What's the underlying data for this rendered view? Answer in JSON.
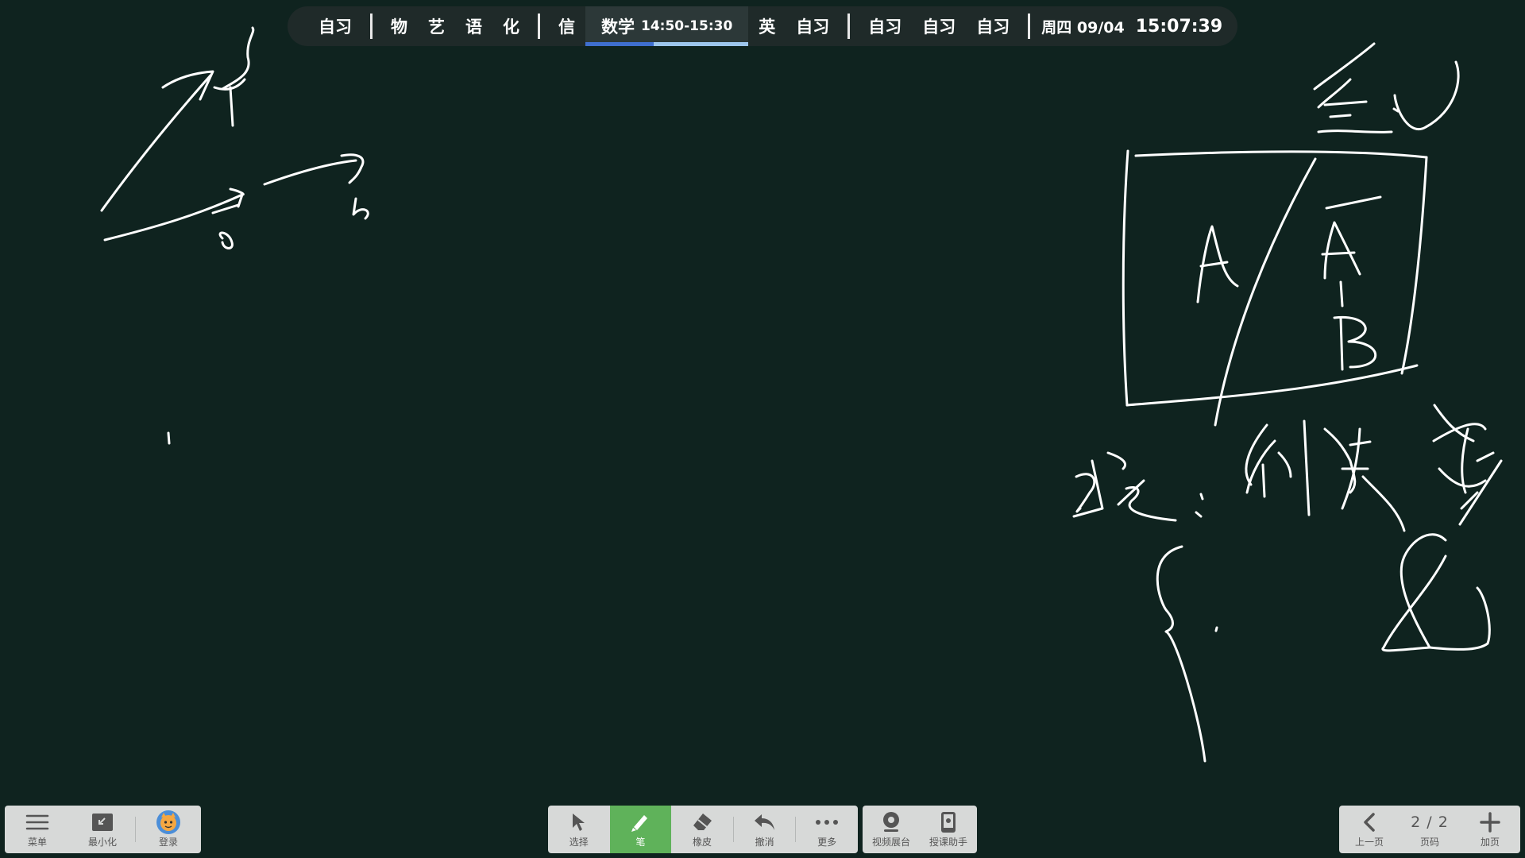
{
  "schedule": {
    "items_a": [
      "自习"
    ],
    "items_b": [
      "物",
      "艺",
      "语",
      "化"
    ],
    "items_c": [
      "信"
    ],
    "current": {
      "subject": "数学",
      "time": "14:50-15:30",
      "progress": 0.42
    },
    "items_d": [
      "英",
      "自习"
    ],
    "items_e": [
      "自习",
      "自习",
      "自习"
    ],
    "date": "周四 09/04",
    "clock": "15:07:39"
  },
  "toolbar_left": {
    "menu": "菜单",
    "minimize": "最小化",
    "login": "登录"
  },
  "toolbar_center": {
    "select": "选择",
    "pen": "笔",
    "eraser": "橡皮",
    "undo": "撤消",
    "more": "更多"
  },
  "toolbar_camera": {
    "video_booth": "视频展台",
    "teaching_assistant": "授课助手"
  },
  "toolbar_right": {
    "prev_page": "上一页",
    "page_indicator": "2 / 2",
    "page_label": "页码",
    "add_page": "加页"
  },
  "colors": {
    "background": "#0f231f",
    "ink": "#ffffff",
    "pen_active": "#5fb25a",
    "progress_done": "#3f6fcf",
    "progress_rest": "#9dc6ec"
  }
}
